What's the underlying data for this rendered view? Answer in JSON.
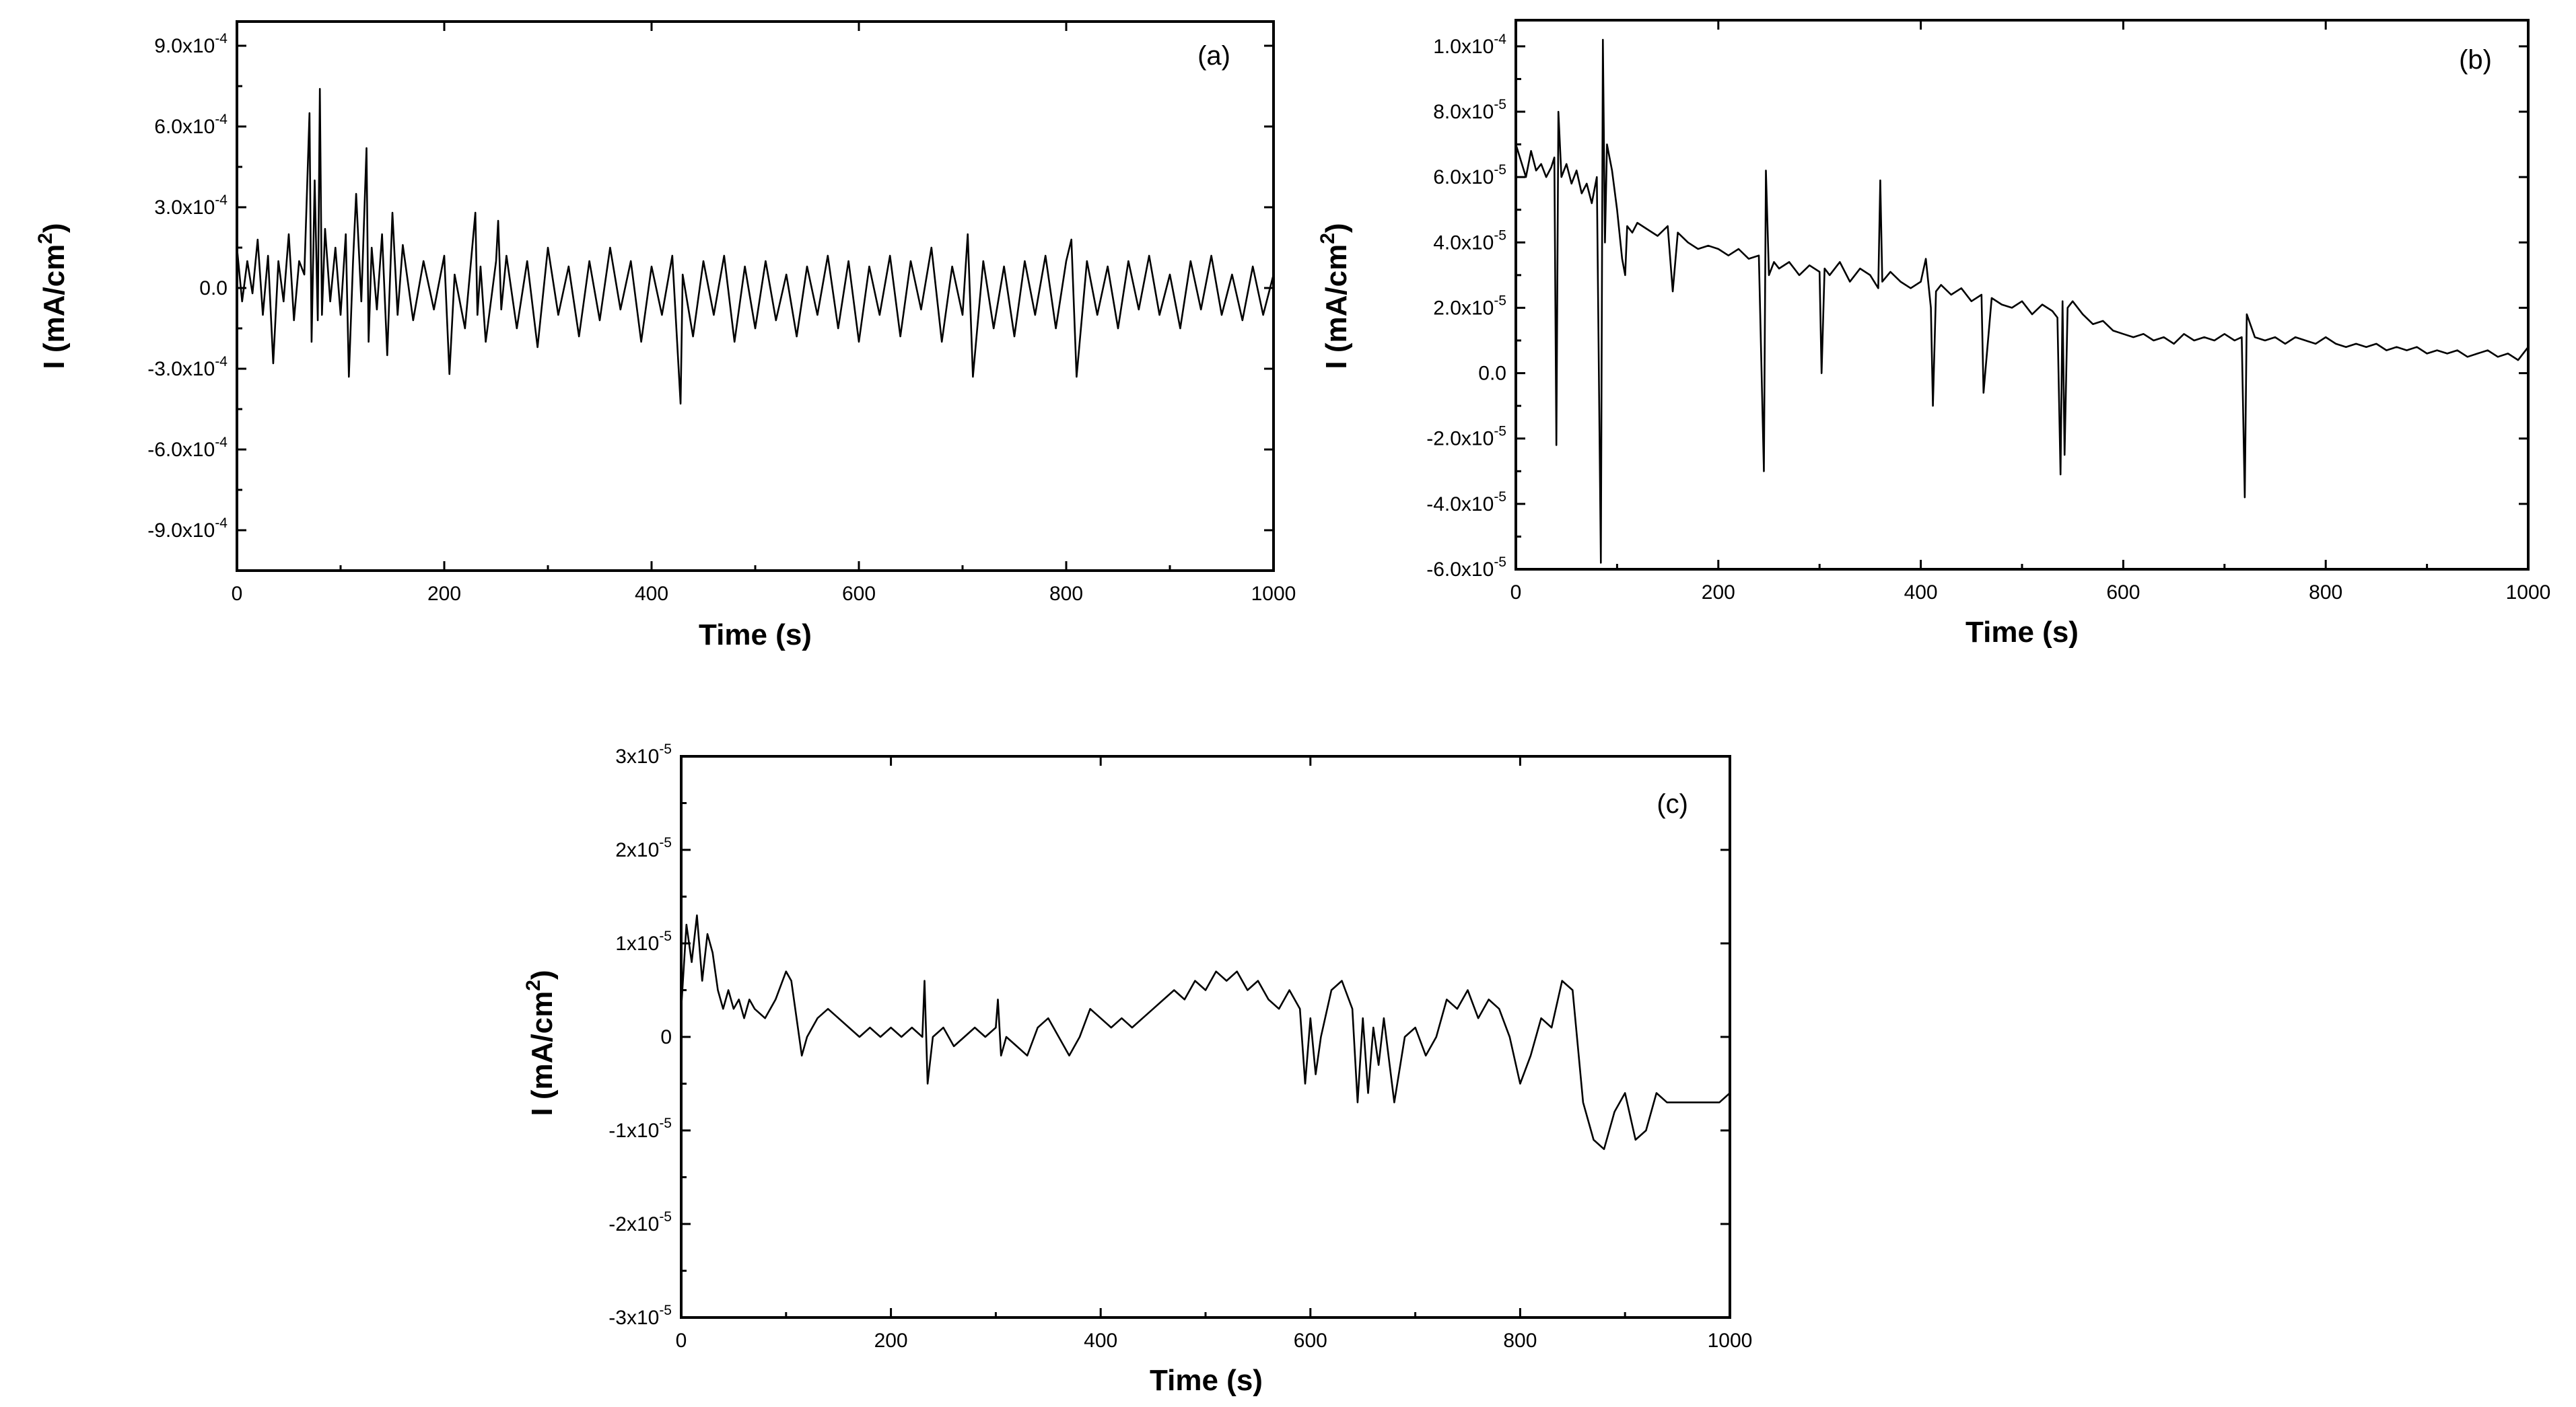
{
  "chart_data": [
    {
      "type": "line",
      "panel_label": "(a)",
      "xlabel": "Time (s)",
      "ylabel": "I (mA/cm",
      "ylabel_superscript": "2",
      "ylabel_close": ")",
      "xlim": [
        0,
        1000
      ],
      "ylim": [
        -0.00105,
        0.00099
      ],
      "x_ticks": [
        0,
        200,
        400,
        600,
        800,
        1000
      ],
      "x_tick_labels": [
        "0",
        "200",
        "400",
        "600",
        "800",
        "1000"
      ],
      "y_ticks": [
        -0.0009,
        -0.0006,
        -0.0003,
        0,
        0.0003,
        0.0006,
        0.0009
      ],
      "y_tick_labels": [
        {
          "mantissa": "-9.0x10",
          "exponent": "-4"
        },
        {
          "mantissa": "-6.0x10",
          "exponent": "-4"
        },
        {
          "mantissa": "-3.0x10",
          "exponent": "-4"
        },
        {
          "mantissa": "0.0",
          "exponent": ""
        },
        {
          "mantissa": "3.0x10",
          "exponent": "-4"
        },
        {
          "mantissa": "6.0x10",
          "exponent": "-4"
        },
        {
          "mantissa": "9.0x10",
          "exponent": "-4"
        }
      ],
      "series": [
        {
          "x": [
            0,
            5,
            10,
            15,
            20,
            25,
            30,
            35,
            40,
            45,
            50,
            55,
            60,
            65,
            70,
            72,
            75,
            78,
            80,
            82,
            85,
            90,
            95,
            100,
            105,
            108,
            112,
            115,
            120,
            125,
            127,
            130,
            135,
            140,
            145,
            150,
            155,
            160,
            170,
            180,
            190,
            200,
            205,
            210,
            220,
            230,
            232,
            235,
            240,
            250,
            252,
            255,
            260,
            270,
            280,
            290,
            300,
            310,
            320,
            330,
            340,
            350,
            360,
            370,
            380,
            390,
            400,
            410,
            420,
            428,
            430,
            440,
            450,
            460,
            470,
            480,
            490,
            500,
            510,
            520,
            530,
            540,
            550,
            560,
            570,
            580,
            590,
            600,
            610,
            620,
            630,
            640,
            650,
            660,
            670,
            680,
            690,
            700,
            705,
            710,
            720,
            730,
            740,
            750,
            760,
            770,
            780,
            790,
            800,
            805,
            810,
            820,
            830,
            840,
            850,
            860,
            870,
            880,
            890,
            900,
            910,
            920,
            930,
            940,
            950,
            960,
            970,
            980,
            990,
            1000
          ],
          "y": [
            0.00015,
            -5e-05,
            0.0001,
            -2e-05,
            0.00018,
            -0.0001,
            0.00012,
            -0.00028,
            0.0001,
            -5e-05,
            0.0002,
            -0.00012,
            0.0001,
            5e-05,
            0.00065,
            -0.0002,
            0.0004,
            -0.00012,
            0.00074,
            -0.0001,
            0.00022,
            -5e-05,
            0.00015,
            -0.0001,
            0.0002,
            -0.00033,
            0.0001,
            0.00035,
            -5e-05,
            0.00052,
            -0.0002,
            0.00015,
            -8e-05,
            0.0002,
            -0.00025,
            0.00028,
            -0.0001,
            0.00016,
            -0.00012,
            0.0001,
            -8e-05,
            0.00012,
            -0.00032,
            5e-05,
            -0.00015,
            0.00028,
            -0.0001,
            8e-05,
            -0.0002,
            0.0001,
            0.00025,
            -8e-05,
            0.00012,
            -0.00015,
            0.0001,
            -0.00022,
            0.00015,
            -0.0001,
            8e-05,
            -0.00018,
            0.0001,
            -0.00012,
            0.00015,
            -8e-05,
            0.0001,
            -0.0002,
            8e-05,
            -0.0001,
            0.00012,
            -0.00043,
            5e-05,
            -0.00018,
            0.0001,
            -0.0001,
            0.00012,
            -0.0002,
            8e-05,
            -0.00015,
            0.0001,
            -0.00012,
            5e-05,
            -0.00018,
            8e-05,
            -0.0001,
            0.00012,
            -0.00015,
            0.0001,
            -0.0002,
            8e-05,
            -0.0001,
            0.00012,
            -0.00018,
            0.0001,
            -8e-05,
            0.00015,
            -0.0002,
            8e-05,
            -0.0001,
            0.0002,
            -0.00033,
            0.0001,
            -0.00015,
            8e-05,
            -0.00018,
            0.0001,
            -0.0001,
            0.00012,
            -0.00015,
            0.0001,
            0.00018,
            -0.00033,
            0.0001,
            -0.0001,
            8e-05,
            -0.00015,
            0.0001,
            -8e-05,
            0.00012,
            -0.0001,
            5e-05,
            -0.00015,
            0.0001,
            -8e-05,
            0.00012,
            -0.0001,
            5e-05,
            -0.00012,
            8e-05,
            -0.0001,
            5e-05
          ]
        }
      ]
    },
    {
      "type": "line",
      "panel_label": "(b)",
      "xlabel": "Time (s)",
      "ylabel": "I (mA/cm",
      "ylabel_superscript": "2",
      "ylabel_close": ")",
      "xlim": [
        0,
        1000
      ],
      "ylim": [
        -6e-05,
        0.000108
      ],
      "x_ticks": [
        0,
        200,
        400,
        600,
        800,
        1000
      ],
      "x_tick_labels": [
        "0",
        "200",
        "400",
        "600",
        "800",
        "1000"
      ],
      "y_ticks": [
        -6e-05,
        -4e-05,
        -2e-05,
        0,
        2e-05,
        4e-05,
        6e-05,
        8e-05,
        0.0001
      ],
      "y_tick_labels": [
        {
          "mantissa": "-6.0x10",
          "exponent": "-5"
        },
        {
          "mantissa": "-4.0x10",
          "exponent": "-5"
        },
        {
          "mantissa": "-2.0x10",
          "exponent": "-5"
        },
        {
          "mantissa": "0.0",
          "exponent": ""
        },
        {
          "mantissa": "2.0x10",
          "exponent": "-5"
        },
        {
          "mantissa": "4.0x10",
          "exponent": "-5"
        },
        {
          "mantissa": "6.0x10",
          "exponent": "-5"
        },
        {
          "mantissa": "8.0x10",
          "exponent": "-5"
        },
        {
          "mantissa": "1.0x10",
          "exponent": "-4"
        }
      ],
      "series": [
        {
          "x": [
            0,
            5,
            10,
            15,
            20,
            25,
            30,
            35,
            38,
            40,
            42,
            45,
            50,
            55,
            60,
            65,
            70,
            75,
            80,
            84,
            86,
            88,
            90,
            95,
            100,
            105,
            108,
            110,
            115,
            120,
            130,
            140,
            150,
            155,
            160,
            170,
            180,
            190,
            200,
            210,
            220,
            230,
            240,
            245,
            247,
            250,
            255,
            260,
            270,
            280,
            290,
            300,
            302,
            305,
            310,
            320,
            330,
            340,
            350,
            358,
            360,
            362,
            370,
            380,
            390,
            400,
            405,
            410,
            412,
            415,
            420,
            430,
            440,
            450,
            460,
            462,
            470,
            480,
            490,
            500,
            510,
            520,
            530,
            535,
            538,
            540,
            542,
            545,
            550,
            560,
            570,
            580,
            590,
            600,
            610,
            620,
            630,
            640,
            650,
            660,
            670,
            680,
            690,
            700,
            710,
            717,
            720,
            722,
            730,
            740,
            750,
            760,
            770,
            780,
            790,
            800,
            810,
            820,
            830,
            840,
            850,
            860,
            870,
            880,
            890,
            900,
            910,
            920,
            930,
            940,
            950,
            960,
            970,
            980,
            990,
            1000
          ],
          "y": [
            7e-05,
            6.5e-05,
            6e-05,
            6.8e-05,
            6.2e-05,
            6.4e-05,
            6e-05,
            6.3e-05,
            6.6e-05,
            -2.2e-05,
            8e-05,
            6e-05,
            6.4e-05,
            5.8e-05,
            6.2e-05,
            5.5e-05,
            5.8e-05,
            5.2e-05,
            6e-05,
            -5.8e-05,
            0.000102,
            4e-05,
            7e-05,
            6.2e-05,
            5e-05,
            3.5e-05,
            3e-05,
            4.5e-05,
            4.3e-05,
            4.6e-05,
            4.4e-05,
            4.2e-05,
            4.5e-05,
            2.5e-05,
            4.3e-05,
            4e-05,
            3.8e-05,
            3.9e-05,
            3.8e-05,
            3.6e-05,
            3.8e-05,
            3.5e-05,
            3.6e-05,
            -3e-05,
            6.2e-05,
            3e-05,
            3.4e-05,
            3.2e-05,
            3.4e-05,
            3e-05,
            3.3e-05,
            3.1e-05,
            0.0,
            3.2e-05,
            3e-05,
            3.4e-05,
            2.8e-05,
            3.2e-05,
            3e-05,
            2.6e-05,
            5.9e-05,
            2.8e-05,
            3.1e-05,
            2.8e-05,
            2.6e-05,
            2.8e-05,
            3.5e-05,
            2e-05,
            -1e-05,
            2.5e-05,
            2.7e-05,
            2.4e-05,
            2.6e-05,
            2.2e-05,
            2.4e-05,
            -6e-06,
            2.3e-05,
            2.1e-05,
            2e-05,
            2.2e-05,
            1.8e-05,
            2.1e-05,
            1.9e-05,
            1.7e-05,
            -3.1e-05,
            2.2e-05,
            -2.5e-05,
            2e-05,
            2.2e-05,
            1.8e-05,
            1.5e-05,
            1.6e-05,
            1.3e-05,
            1.2e-05,
            1.1e-05,
            1.2e-05,
            1e-05,
            1.1e-05,
            9e-06,
            1.2e-05,
            1e-05,
            1.1e-05,
            1e-05,
            1.2e-05,
            1e-05,
            1.1e-05,
            -3.8e-05,
            1.8e-05,
            1.1e-05,
            1e-05,
            1.1e-05,
            9e-06,
            1.1e-05,
            1e-05,
            9e-06,
            1.1e-05,
            9e-06,
            8e-06,
            9e-06,
            8e-06,
            9e-06,
            7e-06,
            8e-06,
            7e-06,
            8e-06,
            6e-06,
            7e-06,
            6e-06,
            7e-06,
            5e-06,
            6e-06,
            7e-06,
            5e-06,
            6e-06,
            4e-06,
            8e-06
          ]
        }
      ]
    },
    {
      "type": "line",
      "panel_label": "(c)",
      "xlabel": "Time (s)",
      "ylabel": "I (mA/cm",
      "ylabel_superscript": "2",
      "ylabel_close": ")",
      "xlim": [
        0,
        1000
      ],
      "ylim": [
        -3e-05,
        3e-05
      ],
      "x_ticks": [
        0,
        200,
        400,
        600,
        800,
        1000
      ],
      "x_tick_labels": [
        "0",
        "200",
        "400",
        "600",
        "800",
        "1000"
      ],
      "y_ticks": [
        -3e-05,
        -2e-05,
        -1e-05,
        0,
        1e-05,
        2e-05,
        3e-05
      ],
      "y_tick_labels": [
        {
          "mantissa": "-3x10",
          "exponent": "-5"
        },
        {
          "mantissa": "-2x10",
          "exponent": "-5"
        },
        {
          "mantissa": "-1x10",
          "exponent": "-5"
        },
        {
          "mantissa": "0",
          "exponent": ""
        },
        {
          "mantissa": "1x10",
          "exponent": "-5"
        },
        {
          "mantissa": "2x10",
          "exponent": "-5"
        },
        {
          "mantissa": "3x10",
          "exponent": "-5"
        }
      ],
      "series": [
        {
          "x": [
            0,
            5,
            10,
            15,
            20,
            25,
            30,
            35,
            40,
            45,
            50,
            55,
            60,
            65,
            70,
            80,
            90,
            100,
            105,
            110,
            115,
            120,
            130,
            140,
            150,
            160,
            170,
            180,
            190,
            200,
            210,
            220,
            230,
            232,
            235,
            240,
            250,
            260,
            270,
            280,
            290,
            300,
            302,
            305,
            310,
            320,
            330,
            340,
            350,
            360,
            370,
            380,
            390,
            400,
            410,
            420,
            430,
            440,
            450,
            460,
            470,
            480,
            490,
            500,
            510,
            520,
            530,
            540,
            550,
            560,
            570,
            580,
            590,
            595,
            600,
            605,
            610,
            620,
            630,
            640,
            645,
            650,
            655,
            660,
            665,
            670,
            680,
            690,
            700,
            710,
            720,
            730,
            740,
            750,
            760,
            770,
            780,
            790,
            800,
            810,
            820,
            830,
            840,
            850,
            860,
            870,
            880,
            890,
            900,
            910,
            920,
            930,
            940,
            950,
            960,
            970,
            980,
            990,
            1000
          ],
          "y": [
            3e-06,
            1.2e-05,
            8e-06,
            1.3e-05,
            6e-06,
            1.1e-05,
            9e-06,
            5e-06,
            3e-06,
            5e-06,
            3e-06,
            4e-06,
            2e-06,
            4e-06,
            3e-06,
            2e-06,
            4e-06,
            7e-06,
            6e-06,
            2e-06,
            -2e-06,
            0.0,
            2e-06,
            3e-06,
            2e-06,
            1e-06,
            0.0,
            1e-06,
            0.0,
            1e-06,
            0.0,
            1e-06,
            0.0,
            6e-06,
            -5e-06,
            0.0,
            1e-06,
            -1e-06,
            0.0,
            1e-06,
            0.0,
            1e-06,
            4e-06,
            -2e-06,
            0.0,
            -1e-06,
            -2e-06,
            1e-06,
            2e-06,
            0.0,
            -2e-06,
            0.0,
            3e-06,
            2e-06,
            1e-06,
            2e-06,
            1e-06,
            2e-06,
            3e-06,
            4e-06,
            5e-06,
            4e-06,
            6e-06,
            5e-06,
            7e-06,
            6e-06,
            7e-06,
            5e-06,
            6e-06,
            4e-06,
            3e-06,
            5e-06,
            3e-06,
            -5e-06,
            2e-06,
            -4e-06,
            0.0,
            5e-06,
            6e-06,
            3e-06,
            -7e-06,
            2e-06,
            -6e-06,
            1e-06,
            -3e-06,
            2e-06,
            -7e-06,
            0.0,
            1e-06,
            -2e-06,
            0.0,
            4e-06,
            3e-06,
            5e-06,
            2e-06,
            4e-06,
            3e-06,
            0.0,
            -5e-06,
            -2e-06,
            2e-06,
            1e-06,
            6e-06,
            5e-06,
            -7e-06,
            -1.1e-05,
            -1.2e-05,
            -8e-06,
            -6e-06,
            -1.1e-05,
            -1e-05,
            -6e-06,
            -7e-06,
            -7e-06,
            -7e-06,
            -7e-06,
            -7e-06,
            -7e-06,
            -6e-06
          ]
        }
      ]
    }
  ]
}
